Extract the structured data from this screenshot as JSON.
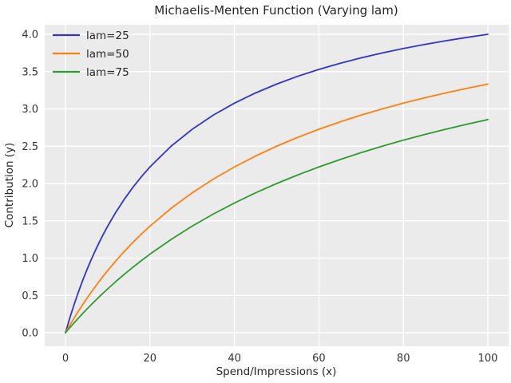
{
  "title": "Michaelis-Menten Function (Varying lam)",
  "axes": {
    "xlabel": "Spend/Impressions (x)",
    "ylabel": "Contribution (y)"
  },
  "legend": [
    {
      "label": "lam=25",
      "color": "#3333cc"
    },
    {
      "label": "lam=50",
      "color": "#ff7f0e"
    },
    {
      "label": "lam=75",
      "color": "#2e9b2e"
    }
  ],
  "colors": {
    "plot_background": "#ebebeb",
    "grid": "#ffffff",
    "text": "#262626"
  },
  "chart_data": {
    "type": "line",
    "title": "Michaelis-Menten Function (Varying lam)",
    "xlabel": "Spend/Impressions (x)",
    "ylabel": "Contribution (y)",
    "xlim": [
      0,
      100
    ],
    "ylim": [
      0.0,
      4.0
    ],
    "grid": true,
    "legend_position": "upper left",
    "xticks": [
      0,
      20,
      40,
      60,
      80,
      100
    ],
    "xtick_labels": [
      "0",
      "20",
      "40",
      "60",
      "80",
      "100"
    ],
    "yticks": [
      0,
      0.5,
      1,
      1.5,
      2,
      2.5,
      3,
      3.5,
      4
    ],
    "ytick_labels": [
      "0.0",
      "0.5",
      "1.0",
      "1.5",
      "2.0",
      "2.5",
      "3.0",
      "3.5",
      "4.0"
    ],
    "x": [
      0,
      1,
      2,
      3,
      4,
      5,
      6,
      7,
      8,
      9,
      10,
      12,
      14,
      16,
      18,
      20,
      25,
      30,
      35,
      40,
      45,
      50,
      55,
      60,
      65,
      70,
      75,
      80,
      85,
      90,
      95,
      100
    ],
    "series": [
      {
        "name": "lam=25",
        "color": "#3333cc",
        "values": [
          0,
          0.192,
          0.37,
          0.536,
          0.69,
          0.833,
          0.968,
          1.094,
          1.212,
          1.324,
          1.429,
          1.622,
          1.795,
          1.951,
          2.093,
          2.222,
          2.5,
          2.727,
          2.917,
          3.077,
          3.214,
          3.333,
          3.438,
          3.529,
          3.611,
          3.684,
          3.75,
          3.81,
          3.864,
          3.913,
          3.958,
          4.0
        ]
      },
      {
        "name": "lam=50",
        "color": "#ff7f0e",
        "values": [
          0,
          0.098,
          0.192,
          0.283,
          0.37,
          0.455,
          0.536,
          0.614,
          0.69,
          0.763,
          0.833,
          0.968,
          1.094,
          1.212,
          1.324,
          1.429,
          1.667,
          1.875,
          2.059,
          2.222,
          2.368,
          2.5,
          2.619,
          2.727,
          2.826,
          2.917,
          3.0,
          3.077,
          3.148,
          3.214,
          3.276,
          3.333
        ]
      },
      {
        "name": "lam=75",
        "color": "#2e9b2e",
        "values": [
          0,
          0.066,
          0.13,
          0.192,
          0.253,
          0.313,
          0.37,
          0.427,
          0.482,
          0.536,
          0.588,
          0.69,
          0.787,
          0.879,
          0.968,
          1.053,
          1.25,
          1.429,
          1.591,
          1.739,
          1.875,
          2.0,
          2.115,
          2.222,
          2.321,
          2.414,
          2.5,
          2.581,
          2.656,
          2.727,
          2.794,
          2.857
        ]
      }
    ]
  }
}
